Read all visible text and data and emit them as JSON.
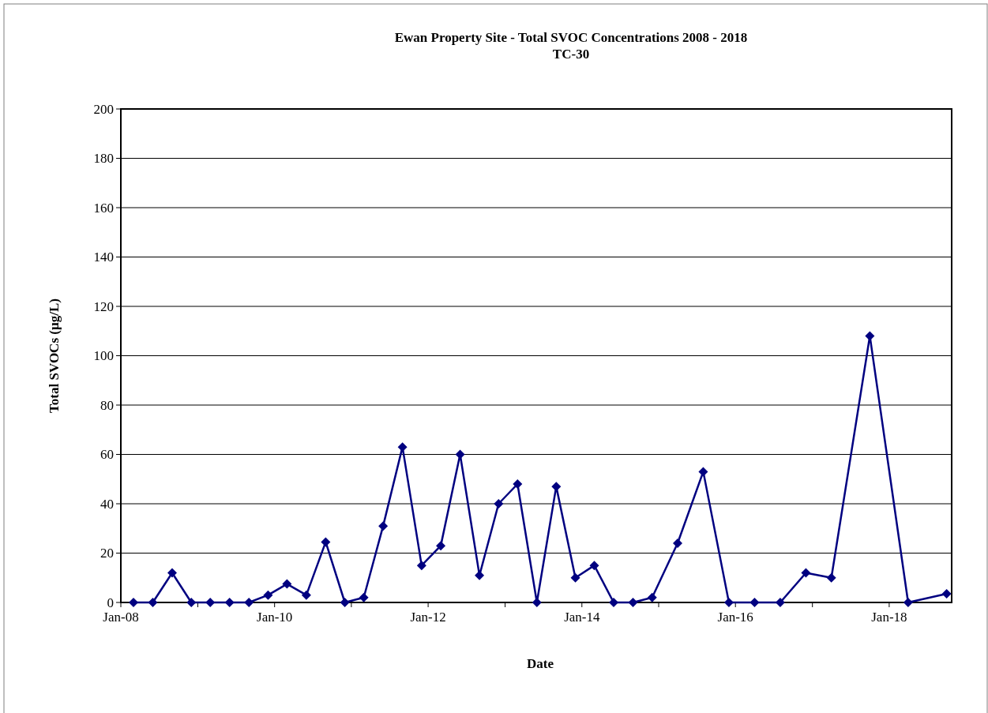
{
  "chart_data": {
    "type": "line",
    "title": "Ewan Property Site - Total SVOC Concentrations 2008 - 2018",
    "subtitle": "TC-30",
    "xlabel": "Date",
    "ylabel": "Total SVOCs (µg/L)",
    "x": [
      "2008-03",
      "2008-06",
      "2008-09",
      "2008-12",
      "2009-03",
      "2009-06",
      "2009-09",
      "2009-12",
      "2010-03",
      "2010-06",
      "2010-09",
      "2010-12",
      "2011-03",
      "2011-06",
      "2011-09",
      "2011-12",
      "2012-03",
      "2012-06",
      "2012-09",
      "2012-12",
      "2013-03",
      "2013-06",
      "2013-09",
      "2013-12",
      "2014-03",
      "2014-06",
      "2014-09",
      "2014-12",
      "2015-04",
      "2015-08",
      "2015-12",
      "2016-04",
      "2016-08",
      "2016-12",
      "2017-04",
      "2017-10",
      "2018-04",
      "2018-10"
    ],
    "series": [
      {
        "color": "#000080",
        "values": [
          0,
          0,
          12,
          0,
          0,
          0,
          0,
          3,
          7.5,
          3,
          24.5,
          0,
          2,
          31,
          63,
          15,
          23,
          60,
          11,
          40,
          48,
          0,
          47,
          10,
          15,
          0,
          0,
          2,
          24,
          53,
          0,
          0,
          0,
          12,
          10,
          108,
          0,
          3.5
        ]
      }
    ],
    "xlim": [
      "2008-01-01",
      "2018-10-25"
    ],
    "xticks": [
      {
        "value": "2008-01-01",
        "label": "Jan-08"
      },
      {
        "value": "2009-01-01",
        "label": null
      },
      {
        "value": "2010-01-01",
        "label": "Jan-10"
      },
      {
        "value": "2011-01-01",
        "label": null
      },
      {
        "value": "2012-01-01",
        "label": "Jan-12"
      },
      {
        "value": "2013-01-01",
        "label": null
      },
      {
        "value": "2014-01-01",
        "label": "Jan-14"
      },
      {
        "value": "2015-01-01",
        "label": null
      },
      {
        "value": "2016-01-01",
        "label": "Jan-16"
      },
      {
        "value": "2017-01-01",
        "label": null
      },
      {
        "value": "2018-01-01",
        "label": "Jan-18"
      }
    ],
    "ylim": [
      0,
      200
    ],
    "yticks": [
      0,
      20,
      40,
      60,
      80,
      100,
      120,
      140,
      160,
      180,
      200
    ],
    "grid": "y",
    "marker": "diamond",
    "line_style": "solid"
  }
}
